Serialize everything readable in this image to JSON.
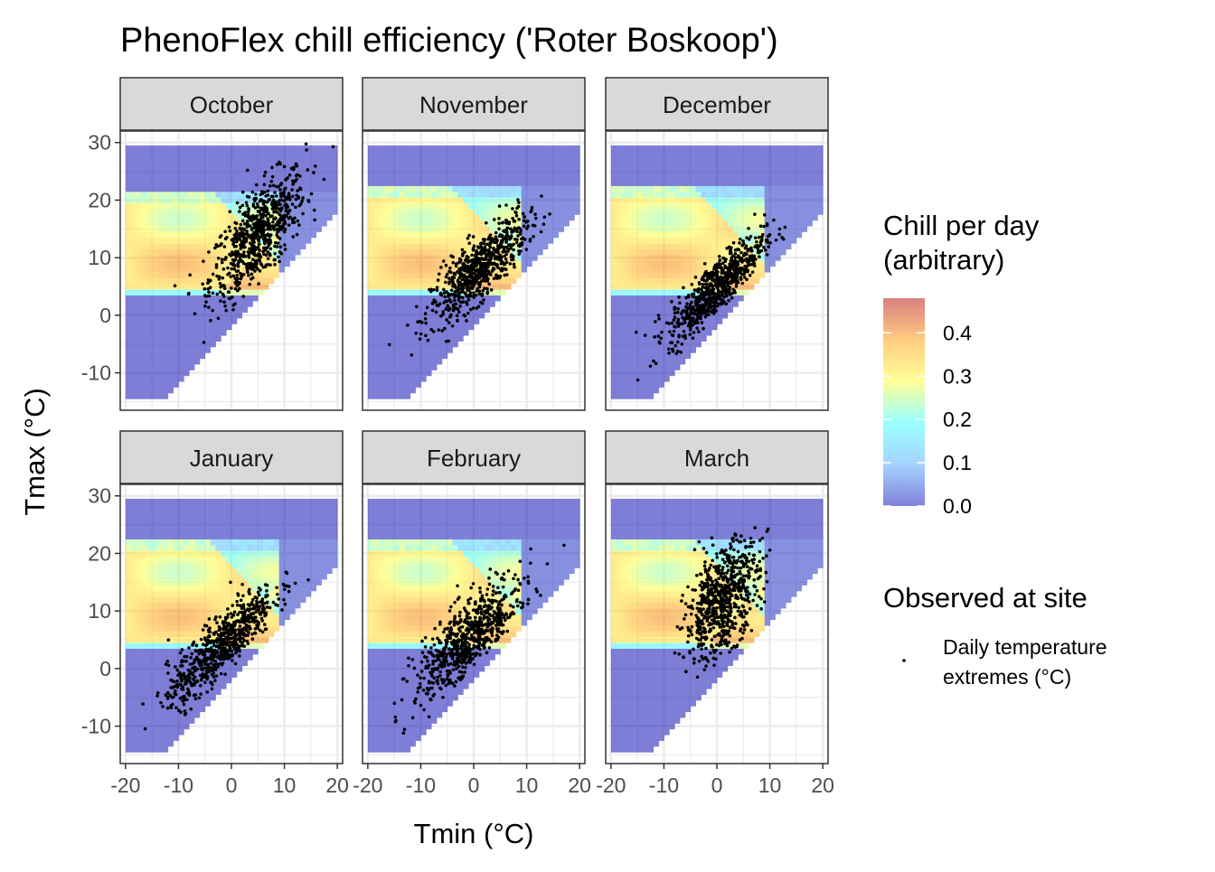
{
  "chart_data": {
    "type": "heatmap",
    "title": "PhenoFlex chill efficiency ('Roter Boskoop')",
    "xlabel": "Tmin (°C)",
    "ylabel": "Tmax (°C)",
    "xlim": [
      -21,
      21
    ],
    "ylim": [
      -16.5,
      32
    ],
    "x_ticks": [
      -20,
      -10,
      0,
      10,
      20
    ],
    "x_tick_labels": [
      "-20",
      "-10",
      "0",
      "10",
      "20"
    ],
    "y_ticks": [
      -10,
      0,
      10,
      20,
      30
    ],
    "y_tick_labels": [
      "-10",
      "0",
      "10",
      "20",
      "30"
    ],
    "grid": true,
    "facets": [
      {
        "label": "October",
        "obs_center": [
          5,
          14
        ],
        "obs_spread": [
          4.5,
          5.5
        ],
        "obs_rho": 0.7
      },
      {
        "label": "November",
        "obs_center": [
          1,
          8
        ],
        "obs_spread": [
          4.5,
          4.5
        ],
        "obs_rho": 0.8
      },
      {
        "label": "December",
        "obs_center": [
          0,
          5
        ],
        "obs_spread": [
          4.5,
          4.5
        ],
        "obs_rho": 0.85
      },
      {
        "label": "January",
        "obs_center": [
          -2,
          4
        ],
        "obs_spread": [
          5,
          5
        ],
        "obs_rho": 0.85
      },
      {
        "label": "February",
        "obs_center": [
          -1,
          5
        ],
        "obs_spread": [
          5,
          5
        ],
        "obs_rho": 0.75
      },
      {
        "label": "March",
        "obs_center": [
          1,
          12
        ],
        "obs_spread": [
          3.5,
          5
        ],
        "obs_rho": 0.5
      }
    ],
    "fill_scale": {
      "name": "Chill per day\n(arbitrary)",
      "range": [
        0,
        0.48
      ],
      "breaks": [
        0.0,
        0.1,
        0.2,
        0.3,
        0.4
      ],
      "break_labels": [
        "0.0",
        "0.1",
        "0.2",
        "0.3",
        "0.4"
      ],
      "colors": [
        "#0000b0",
        "#4da6ff",
        "#33ffff",
        "#ffff33",
        "#ff9900",
        "#b30000"
      ],
      "opacity": 0.5
    },
    "point_legend": {
      "title": "Observed at site",
      "label_lines": [
        "Daily temperature",
        "extremes (°C)"
      ]
    }
  }
}
